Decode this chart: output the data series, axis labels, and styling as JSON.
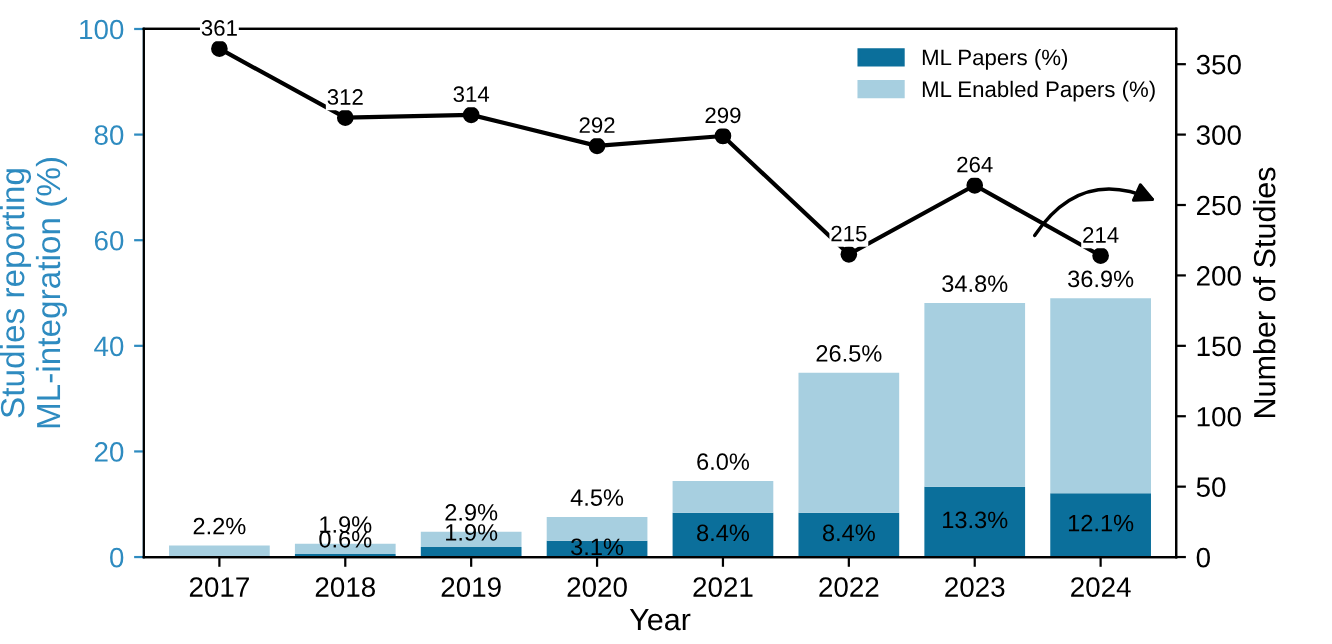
{
  "chart_data": {
    "type": "bar",
    "xlabel": "Year",
    "ylabel": "Studies reporting\nML-integration (%)",
    "y2label": "Number of Studies",
    "categories": [
      "2017",
      "2018",
      "2019",
      "2020",
      "2021",
      "2022",
      "2023",
      "2024"
    ],
    "stacked": true,
    "ylim": [
      0,
      100
    ],
    "yticks": [
      0,
      20,
      40,
      60,
      80,
      100
    ],
    "y2lim": [
      0,
      375
    ],
    "y2ticks": [
      0,
      50,
      100,
      150,
      200,
      250,
      300,
      350
    ],
    "series": [
      {
        "name": "ML Papers (%)",
        "color": "#0b6f9b",
        "values": [
          0,
          0.6,
          1.9,
          3.1,
          8.4,
          8.4,
          13.3,
          12.1
        ],
        "value_labels": [
          null,
          "0.6%",
          "1.9%",
          "3.1%",
          "8.4%",
          "8.4%",
          "13.3%",
          "12.1%"
        ]
      },
      {
        "name": "ML Enabled Papers (%)",
        "color": "#a7cfe0",
        "values": [
          2.2,
          1.9,
          2.9,
          4.5,
          6.0,
          26.5,
          34.8,
          36.9
        ],
        "value_labels": [
          "2.2%",
          "1.9%",
          "2.9%",
          "4.5%",
          "6.0%",
          "26.5%",
          "34.8%",
          "36.9%"
        ]
      },
      {
        "type": "line",
        "axis": "y2",
        "color": "#000000",
        "marker": "circle",
        "values": [
          361,
          312,
          314,
          292,
          299,
          215,
          264,
          214
        ],
        "value_labels": [
          "361",
          "312",
          "314",
          "292",
          "299",
          "215",
          "264",
          "214"
        ]
      }
    ],
    "legend": "top right",
    "grid": false
  }
}
